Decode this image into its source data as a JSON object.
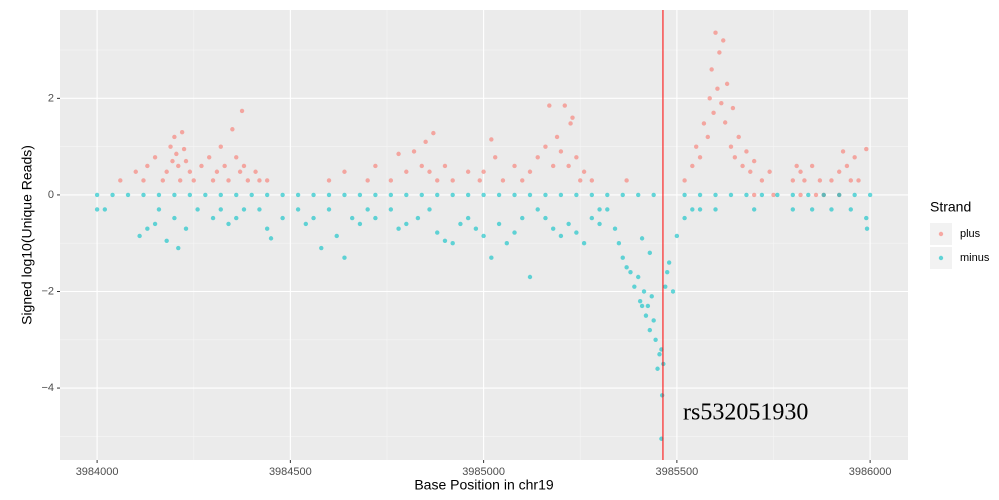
{
  "chart_data": {
    "type": "scatter",
    "x_label": "Base Position in chr19",
    "y_label": "Signed log10(Unique Reads)",
    "xlim": [
      3983904,
      3986098
    ],
    "ylim": [
      -5.49,
      3.83
    ],
    "xticks": [
      3984000,
      3984500,
      3985000,
      3985500,
      3986000
    ],
    "yticks": [
      {
        "value": -4,
        "label": "−4"
      },
      {
        "value": -2,
        "label": "−2"
      },
      0,
      2
    ],
    "grid": true,
    "legend": "right",
    "legend_title": "Strand",
    "vline": {
      "x": 3985464,
      "color": "#ff0000"
    },
    "annotation": "rs532051930",
    "series": [
      {
        "name": "plus",
        "color": "#F8766D",
        "x": [
          3984060,
          3984100,
          3984120,
          3984130,
          3984150,
          3984170,
          3984180,
          3984190,
          3984195,
          3984200,
          3984205,
          3984210,
          3984215,
          3984220,
          3984225,
          3984230,
          3984240,
          3984250,
          3984270,
          3984290,
          3984300,
          3984310,
          3984320,
          3984330,
          3984340,
          3984350,
          3984360,
          3984370,
          3984375,
          3984380,
          3984390,
          3984410,
          3984420,
          3984440,
          3984600,
          3984640,
          3984700,
          3984720,
          3984760,
          3984780,
          3984800,
          3984820,
          3984840,
          3984850,
          3984860,
          3984870,
          3984880,
          3984900,
          3984920,
          3984960,
          3984990,
          3985000,
          3985020,
          3985030,
          3985050,
          3985080,
          3985100,
          3985120,
          3985140,
          3985160,
          3985170,
          3985180,
          3985190,
          3985200,
          3985210,
          3985220,
          3985225,
          3985230,
          3985240,
          3985250,
          3985260,
          3985280,
          3985370,
          3985520,
          3985540,
          3985550,
          3985560,
          3985570,
          3985580,
          3985585,
          3985590,
          3985595,
          3985600,
          3985605,
          3985610,
          3985615,
          3985620,
          3985625,
          3985630,
          3985640,
          3985645,
          3985650,
          3985660,
          3985670,
          3985680,
          3985690,
          3985700,
          3985720,
          3985740,
          3985800,
          3985810,
          3985820,
          3985830,
          3985850,
          3985870,
          3985880,
          3985900,
          3985920,
          3985930,
          3985940,
          3985950,
          3985960,
          3985970,
          3985990,
          3985700,
          3985750,
          3985820,
          3985860,
          3985920
        ],
        "values": [
          0.3,
          0.48,
          0.3,
          0.6,
          0.78,
          0.3,
          0.48,
          1.0,
          0.7,
          1.2,
          0.85,
          0.6,
          0.3,
          1.3,
          0.95,
          0.7,
          0.48,
          0.3,
          0.6,
          0.78,
          0.3,
          0.48,
          1.0,
          0.6,
          0.3,
          1.36,
          0.78,
          0.48,
          1.74,
          0.6,
          0.3,
          0.48,
          0.3,
          0.3,
          0.3,
          0.48,
          0.3,
          0.6,
          0.3,
          0.85,
          0.48,
          0.9,
          0.6,
          1.1,
          0.48,
          1.28,
          0.3,
          0.6,
          0.3,
          0.48,
          0.3,
          0.48,
          1.15,
          0.78,
          0.3,
          0.6,
          0.3,
          0.48,
          0.78,
          1.0,
          1.85,
          0.6,
          1.2,
          0.9,
          1.85,
          0.6,
          1.48,
          1.6,
          0.78,
          0.3,
          0.48,
          0.3,
          0.3,
          0.3,
          0.6,
          1.0,
          0.78,
          1.48,
          1.2,
          2.0,
          2.6,
          1.7,
          3.36,
          2.2,
          2.95,
          1.9,
          3.2,
          1.5,
          2.3,
          1.0,
          1.8,
          0.78,
          1.2,
          0.6,
          0.9,
          0.48,
          0.7,
          0.3,
          0.48,
          0.3,
          0.6,
          0.48,
          0.3,
          0.6,
          0.3,
          0.0,
          0.3,
          0.48,
          0.9,
          0.6,
          0.3,
          0.78,
          0.3,
          0.95,
          0,
          0,
          0,
          0,
          0
        ]
      },
      {
        "name": "minus",
        "color": "#00BFC4",
        "x": [
          3984000,
          3984040,
          3984080,
          3984120,
          3984160,
          3984200,
          3984240,
          3984280,
          3984320,
          3984360,
          3984400,
          3984440,
          3984480,
          3984520,
          3984560,
          3984600,
          3984640,
          3984680,
          3984720,
          3984760,
          3984800,
          3984840,
          3984880,
          3984920,
          3984960,
          3985000,
          3985040,
          3985080,
          3985120,
          3985160,
          3985200,
          3985240,
          3985280,
          3985320,
          3985360,
          3985400,
          3985440,
          3985520,
          3985560,
          3985600,
          3985640,
          3985680,
          3985720,
          3985760,
          3985800,
          3985840,
          3985880,
          3985920,
          3985960,
          3986000,
          3984000,
          3984020,
          3984110,
          3984130,
          3984150,
          3984160,
          3984180,
          3984200,
          3984210,
          3984230,
          3984260,
          3984300,
          3984320,
          3984340,
          3984360,
          3984380,
          3984420,
          3984440,
          3984450,
          3984480,
          3984520,
          3984540,
          3984560,
          3984580,
          3984600,
          3984620,
          3984640,
          3984660,
          3984680,
          3984700,
          3984720,
          3984760,
          3984780,
          3984800,
          3984830,
          3984860,
          3984880,
          3984900,
          3984920,
          3984940,
          3984960,
          3984980,
          3985000,
          3985020,
          3985040,
          3985060,
          3985080,
          3985100,
          3985120,
          3985140,
          3985160,
          3985180,
          3985200,
          3985220,
          3985240,
          3985260,
          3985280,
          3985300,
          3985320,
          3985340,
          3985350,
          3985360,
          3985370,
          3985380,
          3985390,
          3985400,
          3985405,
          3985410,
          3985415,
          3985420,
          3985425,
          3985430,
          3985435,
          3985440,
          3985445,
          3985450,
          3985455,
          3985460,
          3985462,
          3985465,
          3985470,
          3985475,
          3985480,
          3985490,
          3985500,
          3985520,
          3985540,
          3985460,
          3985560,
          3985600,
          3985700,
          3985800,
          3985850,
          3985900,
          3985950,
          3985990,
          3985992,
          3985430,
          3985410,
          3985300
        ],
        "values": [
          0,
          0,
          0,
          0,
          0,
          0,
          0,
          0,
          0,
          0,
          0,
          0,
          0,
          0,
          0,
          0,
          0,
          0,
          0,
          0,
          0,
          0,
          0,
          0,
          0,
          0,
          0,
          0,
          0,
          0,
          0,
          0,
          0,
          0,
          0,
          0,
          0,
          0,
          0,
          0,
          0,
          0,
          0,
          0,
          0,
          0,
          0,
          0,
          0,
          0,
          -0.3,
          -0.3,
          -0.85,
          -0.7,
          -0.6,
          -0.3,
          -0.95,
          -0.48,
          -1.1,
          -0.7,
          -0.3,
          -0.48,
          -0.3,
          -0.6,
          -0.48,
          -0.3,
          -0.3,
          -0.7,
          -0.9,
          -0.48,
          -0.3,
          -0.6,
          -0.48,
          -1.1,
          -0.3,
          -0.85,
          -1.3,
          -0.48,
          -0.6,
          -0.3,
          -0.48,
          -0.3,
          -0.7,
          -0.6,
          -0.48,
          -0.3,
          -0.78,
          -0.95,
          -1.0,
          -0.6,
          -0.48,
          -0.7,
          -0.85,
          -1.3,
          -0.6,
          -1.0,
          -0.78,
          -0.48,
          -1.7,
          -0.3,
          -0.48,
          -0.7,
          -0.85,
          -0.6,
          -0.78,
          -1.0,
          -0.48,
          -0.6,
          -0.3,
          -0.7,
          -1.0,
          -1.3,
          -1.5,
          -1.6,
          -1.9,
          -1.7,
          -2.2,
          -2.3,
          -2.0,
          -2.5,
          -2.3,
          -2.8,
          -2.1,
          -2.6,
          -3.0,
          -3.6,
          -3.3,
          -3.2,
          -4.15,
          -3.5,
          -1.9,
          -1.6,
          -1.4,
          -2.0,
          -0.85,
          -0.48,
          -0.3,
          -5.05,
          -0.3,
          -0.3,
          -0.3,
          -0.3,
          -0.3,
          -0.3,
          -0.3,
          -0.48,
          -0.7,
          -1.2,
          -0.9,
          -0.3
        ]
      }
    ]
  }
}
